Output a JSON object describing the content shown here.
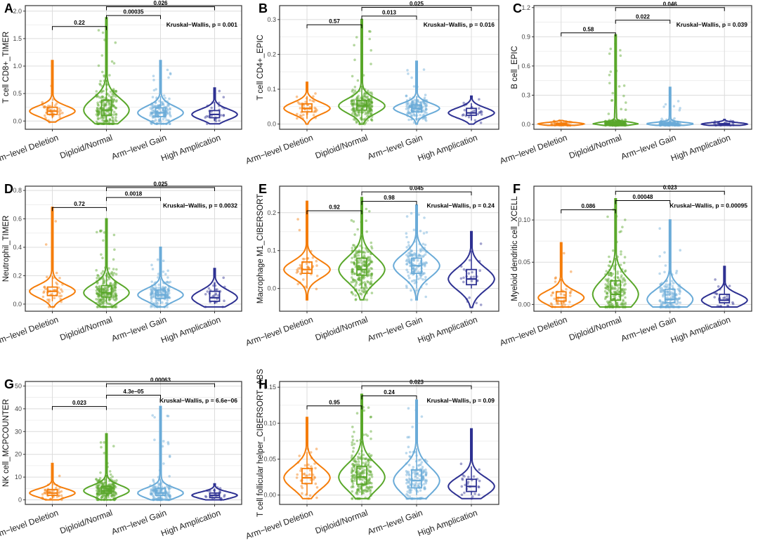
{
  "colors": {
    "Arm-level Deletion": "#f57d0a",
    "Diploid/Normal": "#59a72a",
    "Arm-level Gain": "#6aabd8",
    "High Amplication": "#2e3192"
  },
  "chart_data": [
    {
      "type": "violin",
      "panel_label": "A",
      "ylabel": "T cell CD8+_TIMER",
      "categories": [
        "Arm−level Deletion",
        "Diploid/Normal",
        "Arm−level Gain",
        "High Amplication"
      ],
      "ylim": [
        -0.15,
        2.1
      ],
      "yticks": [
        0.0,
        0.5,
        1.0,
        1.5,
        2.0
      ],
      "ytick_labels": [
        "0.0",
        "0.5",
        "1.0",
        "1.5",
        "2.0"
      ],
      "kruskal": "Kruskal−Wallis, p = 0.001",
      "comparisons": [
        {
          "from": 0,
          "to": 1,
          "label": "0.22",
          "y": 1.72
        },
        {
          "from": 1,
          "to": 2,
          "label": "0.00035",
          "y": 1.92
        },
        {
          "from": 1,
          "to": 3,
          "label": "0.026",
          "y": 2.08
        }
      ],
      "groups": [
        {
          "q1": 0.12,
          "median": 0.18,
          "q3": 0.25,
          "whisker_low": 0.05,
          "whisker_high": 0.35,
          "violin_min": -0.02,
          "violin_max": 1.1,
          "n": 40
        },
        {
          "q1": 0.1,
          "median": 0.2,
          "q3": 0.38,
          "whisker_low": 0.0,
          "whisker_high": 0.75,
          "violin_min": -0.05,
          "violin_max": 1.88,
          "n": 220
        },
        {
          "q1": 0.08,
          "median": 0.15,
          "q3": 0.24,
          "whisker_low": 0.0,
          "whisker_high": 0.45,
          "violin_min": -0.05,
          "violin_max": 1.1,
          "n": 150
        },
        {
          "q1": 0.06,
          "median": 0.12,
          "q3": 0.19,
          "whisker_low": 0.0,
          "whisker_high": 0.35,
          "violin_min": -0.05,
          "violin_max": 0.6,
          "n": 25
        }
      ]
    },
    {
      "type": "violin",
      "panel_label": "B",
      "ylabel": "T cell CD4+_EPIC",
      "categories": [
        "Arm−level Deletion",
        "Diploid/Normal",
        "Arm−level Gain",
        "High Amplication"
      ],
      "ylim": [
        -0.015,
        0.34
      ],
      "yticks": [
        0.0,
        0.1,
        0.2,
        0.3
      ],
      "ytick_labels": [
        "0.0",
        "0.1",
        "0.2",
        "0.3"
      ],
      "kruskal": "Kruskal−Wallis, p = 0.016",
      "comparisons": [
        {
          "from": 0,
          "to": 1,
          "label": "0.57",
          "y": 0.285
        },
        {
          "from": 1,
          "to": 2,
          "label": "0.013",
          "y": 0.31
        },
        {
          "from": 1,
          "to": 3,
          "label": "0.025",
          "y": 0.335
        }
      ],
      "groups": [
        {
          "q1": 0.035,
          "median": 0.045,
          "q3": 0.058,
          "whisker_low": 0.015,
          "whisker_high": 0.08,
          "violin_min": 0.0,
          "violin_max": 0.12,
          "n": 40
        },
        {
          "q1": 0.04,
          "median": 0.052,
          "q3": 0.068,
          "whisker_low": 0.01,
          "whisker_high": 0.11,
          "violin_min": 0.0,
          "violin_max": 0.3,
          "n": 220
        },
        {
          "q1": 0.035,
          "median": 0.045,
          "q3": 0.055,
          "whisker_low": 0.01,
          "whisker_high": 0.08,
          "violin_min": 0.0,
          "violin_max": 0.18,
          "n": 150
        },
        {
          "q1": 0.025,
          "median": 0.032,
          "q3": 0.045,
          "whisker_low": 0.01,
          "whisker_high": 0.06,
          "violin_min": 0.0,
          "violin_max": 0.08,
          "n": 25
        }
      ]
    },
    {
      "type": "violin",
      "panel_label": "C",
      "ylabel": "B cell_EPIC",
      "categories": [
        "Arm−level Deletion",
        "Diploid/Normal",
        "Arm−level Gain",
        "High Amplication"
      ],
      "ylim": [
        -0.05,
        1.22
      ],
      "yticks": [
        0.0,
        0.3,
        0.6,
        0.9,
        1.2
      ],
      "ytick_labels": [
        "0.0",
        "0.3",
        "0.6",
        "0.9",
        "1.2"
      ],
      "kruskal": "Kruskal−Wallis, p = 0.039",
      "comparisons": [
        {
          "from": 0,
          "to": 1,
          "label": "0.58",
          "y": 0.94
        },
        {
          "from": 1,
          "to": 2,
          "label": "0.022",
          "y": 1.07
        },
        {
          "from": 1,
          "to": 3,
          "label": "0.046",
          "y": 1.2
        }
      ],
      "groups": [
        {
          "q1": 0.0,
          "median": 0.005,
          "q3": 0.012,
          "whisker_low": 0.0,
          "whisker_high": 0.03,
          "violin_min": -0.01,
          "violin_max": 0.04,
          "n": 40
        },
        {
          "q1": 0.0,
          "median": 0.008,
          "q3": 0.02,
          "whisker_low": 0.0,
          "whisker_high": 0.05,
          "violin_min": -0.01,
          "violin_max": 0.92,
          "n": 220
        },
        {
          "q1": 0.0,
          "median": 0.006,
          "q3": 0.015,
          "whisker_low": 0.0,
          "whisker_high": 0.04,
          "violin_min": -0.01,
          "violin_max": 0.38,
          "n": 150
        },
        {
          "q1": 0.0,
          "median": 0.003,
          "q3": 0.008,
          "whisker_low": 0.0,
          "whisker_high": 0.02,
          "violin_min": -0.01,
          "violin_max": 0.05,
          "n": 25
        }
      ]
    },
    {
      "type": "violin",
      "panel_label": "D",
      "ylabel": "Neutrophil_TIMER",
      "categories": [
        "Arm−level Deletion",
        "Diploid/Normal",
        "Arm−level Gain",
        "High Amplication"
      ],
      "ylim": [
        -0.05,
        0.83
      ],
      "yticks": [
        0.0,
        0.2,
        0.4,
        0.6,
        0.8
      ],
      "ytick_labels": [
        "0.0",
        "0.2",
        "0.4",
        "0.6",
        "0.8"
      ],
      "kruskal": "Kruskal−Wallis, p = 0.0032",
      "comparisons": [
        {
          "from": 0,
          "to": 1,
          "label": "0.72",
          "y": 0.68
        },
        {
          "from": 1,
          "to": 2,
          "label": "0.0018",
          "y": 0.75
        },
        {
          "from": 1,
          "to": 3,
          "label": "0.025",
          "y": 0.82
        }
      ],
      "groups": [
        {
          "q1": 0.06,
          "median": 0.09,
          "q3": 0.12,
          "whisker_low": 0.02,
          "whisker_high": 0.2,
          "violin_min": -0.02,
          "violin_max": 0.68,
          "n": 40
        },
        {
          "q1": 0.05,
          "median": 0.08,
          "q3": 0.13,
          "whisker_low": 0.01,
          "whisker_high": 0.22,
          "violin_min": -0.02,
          "violin_max": 0.6,
          "n": 220
        },
        {
          "q1": 0.04,
          "median": 0.065,
          "q3": 0.1,
          "whisker_low": 0.0,
          "whisker_high": 0.18,
          "violin_min": -0.02,
          "violin_max": 0.4,
          "n": 150
        },
        {
          "q1": 0.02,
          "median": 0.045,
          "q3": 0.09,
          "whisker_low": 0.0,
          "whisker_high": 0.15,
          "violin_min": -0.02,
          "violin_max": 0.25,
          "n": 25
        }
      ]
    },
    {
      "type": "violin",
      "panel_label": "E",
      "ylabel": "Macrophage M1_CIBERSORT",
      "categories": [
        "Arm−level Deletion",
        "Diploid/Normal",
        "Arm−level Gain",
        "High Amplication"
      ],
      "ylim": [
        -0.06,
        0.27
      ],
      "yticks": [
        0.0,
        0.1,
        0.2
      ],
      "ytick_labels": [
        "0.0",
        "0.1",
        "0.2"
      ],
      "kruskal": "Kruskal−Wallis, p = 0.24",
      "comparisons": [
        {
          "from": 0,
          "to": 1,
          "label": "0.92",
          "y": 0.205
        },
        {
          "from": 1,
          "to": 2,
          "label": "0.98",
          "y": 0.23
        },
        {
          "from": 1,
          "to": 3,
          "label": "0.045",
          "y": 0.255
        }
      ],
      "groups": [
        {
          "q1": 0.04,
          "median": 0.05,
          "q3": 0.07,
          "whisker_low": 0.0,
          "whisker_high": 0.12,
          "violin_min": -0.03,
          "violin_max": 0.23,
          "n": 40
        },
        {
          "q1": 0.035,
          "median": 0.05,
          "q3": 0.08,
          "whisker_low": 0.0,
          "whisker_high": 0.14,
          "violin_min": -0.03,
          "violin_max": 0.24,
          "n": 220
        },
        {
          "q1": 0.04,
          "median": 0.06,
          "q3": 0.08,
          "whisker_low": 0.0,
          "whisker_high": 0.14,
          "violin_min": -0.03,
          "violin_max": 0.22,
          "n": 150
        },
        {
          "q1": 0.01,
          "median": 0.025,
          "q3": 0.05,
          "whisker_low": 0.0,
          "whisker_high": 0.1,
          "violin_min": -0.05,
          "violin_max": 0.15,
          "n": 25
        }
      ]
    },
    {
      "type": "violin",
      "panel_label": "F",
      "ylabel": "Myeloid dendritic cell_XCELL",
      "categories": [
        "Arm−level Deletion",
        "Diploid/Normal",
        "Arm−level Gain",
        "High Amplication"
      ],
      "ylim": [
        -0.008,
        0.14
      ],
      "yticks": [
        0.0,
        0.05,
        0.1
      ],
      "ytick_labels": [
        "0.00",
        "0.05",
        "0.10"
      ],
      "kruskal": "Kruskal−Wallis, p = 0.00095",
      "comparisons": [
        {
          "from": 0,
          "to": 1,
          "label": "0.086",
          "y": 0.112
        },
        {
          "from": 1,
          "to": 2,
          "label": "0.00048",
          "y": 0.123
        },
        {
          "from": 1,
          "to": 3,
          "label": "0.023",
          "y": 0.134
        }
      ],
      "groups": [
        {
          "q1": 0.004,
          "median": 0.008,
          "q3": 0.015,
          "whisker_low": 0.0,
          "whisker_high": 0.03,
          "violin_min": -0.003,
          "violin_max": 0.073,
          "n": 40
        },
        {
          "q1": 0.005,
          "median": 0.012,
          "q3": 0.028,
          "whisker_low": 0.0,
          "whisker_high": 0.055,
          "violin_min": -0.003,
          "violin_max": 0.125,
          "n": 220
        },
        {
          "q1": 0.002,
          "median": 0.006,
          "q3": 0.018,
          "whisker_low": 0.0,
          "whisker_high": 0.04,
          "violin_min": -0.003,
          "violin_max": 0.1,
          "n": 150
        },
        {
          "q1": 0.002,
          "median": 0.005,
          "q3": 0.012,
          "whisker_low": 0.0,
          "whisker_high": 0.025,
          "violin_min": -0.003,
          "violin_max": 0.045,
          "n": 25
        }
      ]
    },
    {
      "type": "violin",
      "panel_label": "G",
      "ylabel": "NK cell_MCPCOUNTER",
      "categories": [
        "Arm−level Deletion",
        "Diploid/Normal",
        "Arm−level Gain",
        "High Amplication"
      ],
      "ylim": [
        -2,
        52
      ],
      "yticks": [
        0,
        10,
        20,
        30,
        40,
        50
      ],
      "ytick_labels": [
        "0",
        "10",
        "20",
        "30",
        "40",
        "50"
      ],
      "kruskal": "Kruskal−Wallis, p = 6.6e−06",
      "comparisons": [
        {
          "from": 0,
          "to": 1,
          "label": "0.023",
          "y": 41
        },
        {
          "from": 1,
          "to": 2,
          "label": "4.3e−05",
          "y": 46
        },
        {
          "from": 1,
          "to": 3,
          "label": "0.00063",
          "y": 51
        }
      ],
      "groups": [
        {
          "q1": 2,
          "median": 3,
          "q3": 4.5,
          "whisker_low": 0.5,
          "whisker_high": 8,
          "violin_min": 0,
          "violin_max": 16,
          "n": 40
        },
        {
          "q1": 2.8,
          "median": 4,
          "q3": 6,
          "whisker_low": 0.5,
          "whisker_high": 11,
          "violin_min": 0,
          "violin_max": 29,
          "n": 220
        },
        {
          "q1": 2,
          "median": 3,
          "q3": 5,
          "whisker_low": 0.5,
          "whisker_high": 9,
          "violin_min": 0,
          "violin_max": 41,
          "n": 150
        },
        {
          "q1": 1,
          "median": 2,
          "q3": 3,
          "whisker_low": 0.5,
          "whisker_high": 5,
          "violin_min": 0,
          "violin_max": 7,
          "n": 25
        }
      ]
    },
    {
      "type": "violin",
      "panel_label": "H",
      "ylabel": "T cell follicular helper_CIBERSORT−ABS",
      "categories": [
        "Arm−level Deletion",
        "Diploid/Normal",
        "Arm−level Gain",
        "High Amplication"
      ],
      "ylim": [
        -0.013,
        0.158
      ],
      "yticks": [
        0.0,
        0.05,
        0.1,
        0.15
      ],
      "ytick_labels": [
        "0.00",
        "0.05",
        "0.10",
        "0.15"
      ],
      "kruskal": "Kruskal−Wallis, p = 0.09",
      "comparisons": [
        {
          "from": 0,
          "to": 1,
          "label": "0.95",
          "y": 0.124
        },
        {
          "from": 1,
          "to": 2,
          "label": "0.24",
          "y": 0.138
        },
        {
          "from": 1,
          "to": 3,
          "label": "0.023",
          "y": 0.152
        }
      ],
      "groups": [
        {
          "q1": 0.016,
          "median": 0.024,
          "q3": 0.037,
          "whisker_low": 0.0,
          "whisker_high": 0.06,
          "violin_min": -0.005,
          "violin_max": 0.108,
          "n": 40
        },
        {
          "q1": 0.015,
          "median": 0.025,
          "q3": 0.04,
          "whisker_low": 0.0,
          "whisker_high": 0.075,
          "violin_min": -0.005,
          "violin_max": 0.14,
          "n": 220
        },
        {
          "q1": 0.01,
          "median": 0.02,
          "q3": 0.035,
          "whisker_low": 0.0,
          "whisker_high": 0.065,
          "violin_min": -0.005,
          "violin_max": 0.132,
          "n": 150
        },
        {
          "q1": 0.005,
          "median": 0.012,
          "q3": 0.022,
          "whisker_low": 0.0,
          "whisker_high": 0.04,
          "violin_min": -0.005,
          "violin_max": 0.092,
          "n": 25
        }
      ]
    }
  ]
}
